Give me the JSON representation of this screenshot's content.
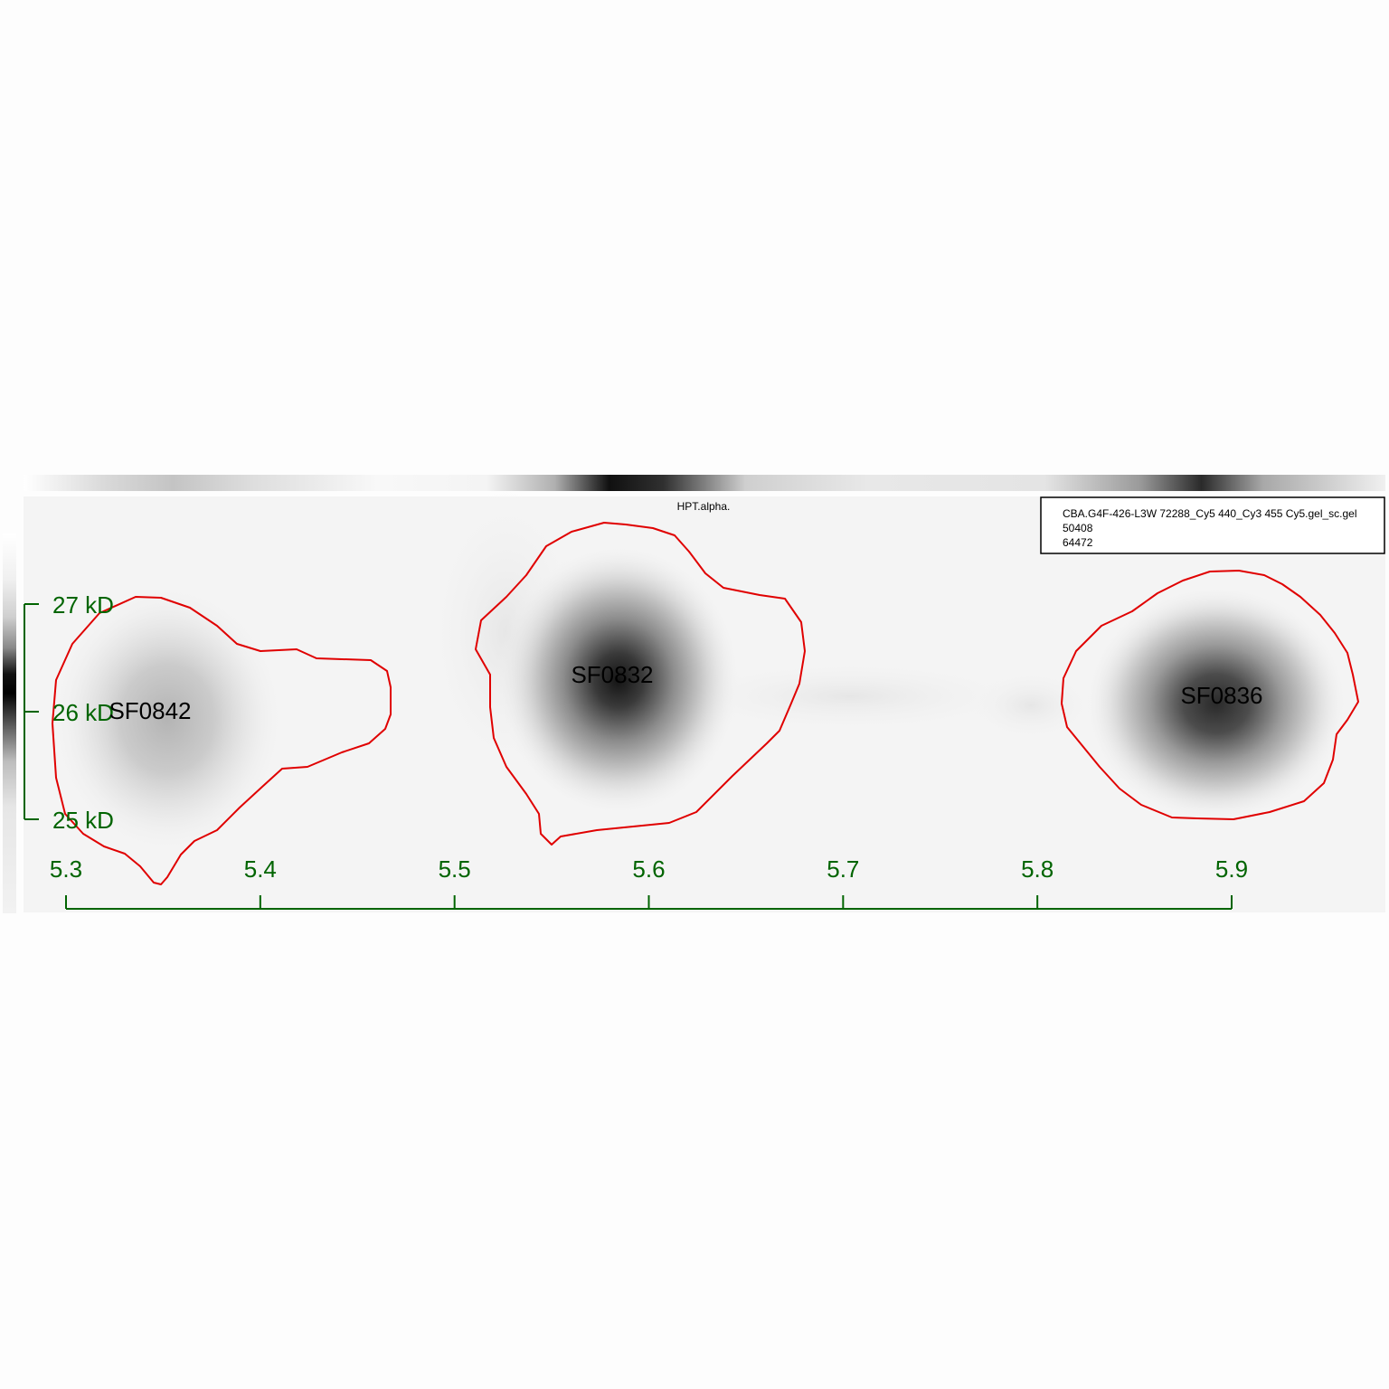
{
  "title": "HPT.alpha.",
  "info_box": {
    "filename": "CBA.G4F-426-L3W 72288_Cy5 440_Cy3 455 Cy5.gel_sc.gel",
    "line2": "50408",
    "line3": "64472"
  },
  "x_axis": {
    "ticks": [
      "5.3",
      "5.4",
      "5.5",
      "5.6",
      "5.7",
      "5.8",
      "5.9"
    ],
    "range": [
      5.3,
      5.9
    ]
  },
  "y_axis": {
    "ticks": [
      "27 kD",
      "26 kD",
      "25 kD"
    ]
  },
  "spots": [
    {
      "id": "SF0842",
      "x": 5.35
    },
    {
      "id": "SF0832",
      "x": 5.59
    },
    {
      "id": "SF0836",
      "x": 5.89
    }
  ],
  "colors": {
    "axis": "#006400",
    "outline": "#e00000",
    "label": "#000000"
  }
}
